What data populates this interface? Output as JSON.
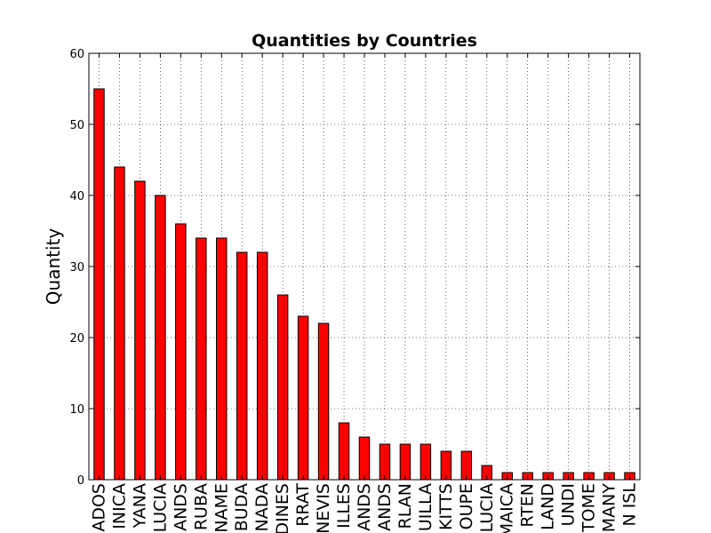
{
  "chart_data": {
    "type": "bar",
    "title": "Quantities by Countries",
    "xlabel": "",
    "ylabel": "Quantity",
    "ylim": [
      0,
      60
    ],
    "yticks": [
      0,
      10,
      20,
      30,
      40,
      50,
      60
    ],
    "grid": true,
    "bar_color": "#ff0000",
    "categories": [
      "ADOS",
      "INICA",
      "YANA",
      "LUCIA",
      "ANDS",
      "RUBA",
      "NAME",
      "BUDA",
      "NADA",
      "DINES",
      "RRAT",
      "NEVIS",
      "ILLES",
      "ANDS",
      "ANDS",
      "RLAN",
      "UILLA",
      "KITTS",
      "OUPE",
      "LUCIA",
      "MAICA",
      "RTEN",
      "LAND",
      "UNDI",
      "TOME",
      "MANY",
      "N ISL"
    ],
    "values": [
      55,
      44,
      42,
      40,
      36,
      34,
      34,
      32,
      32,
      26,
      23,
      22,
      8,
      6,
      5,
      5,
      5,
      4,
      4,
      2,
      1,
      1,
      1,
      1,
      1,
      1,
      1
    ]
  }
}
